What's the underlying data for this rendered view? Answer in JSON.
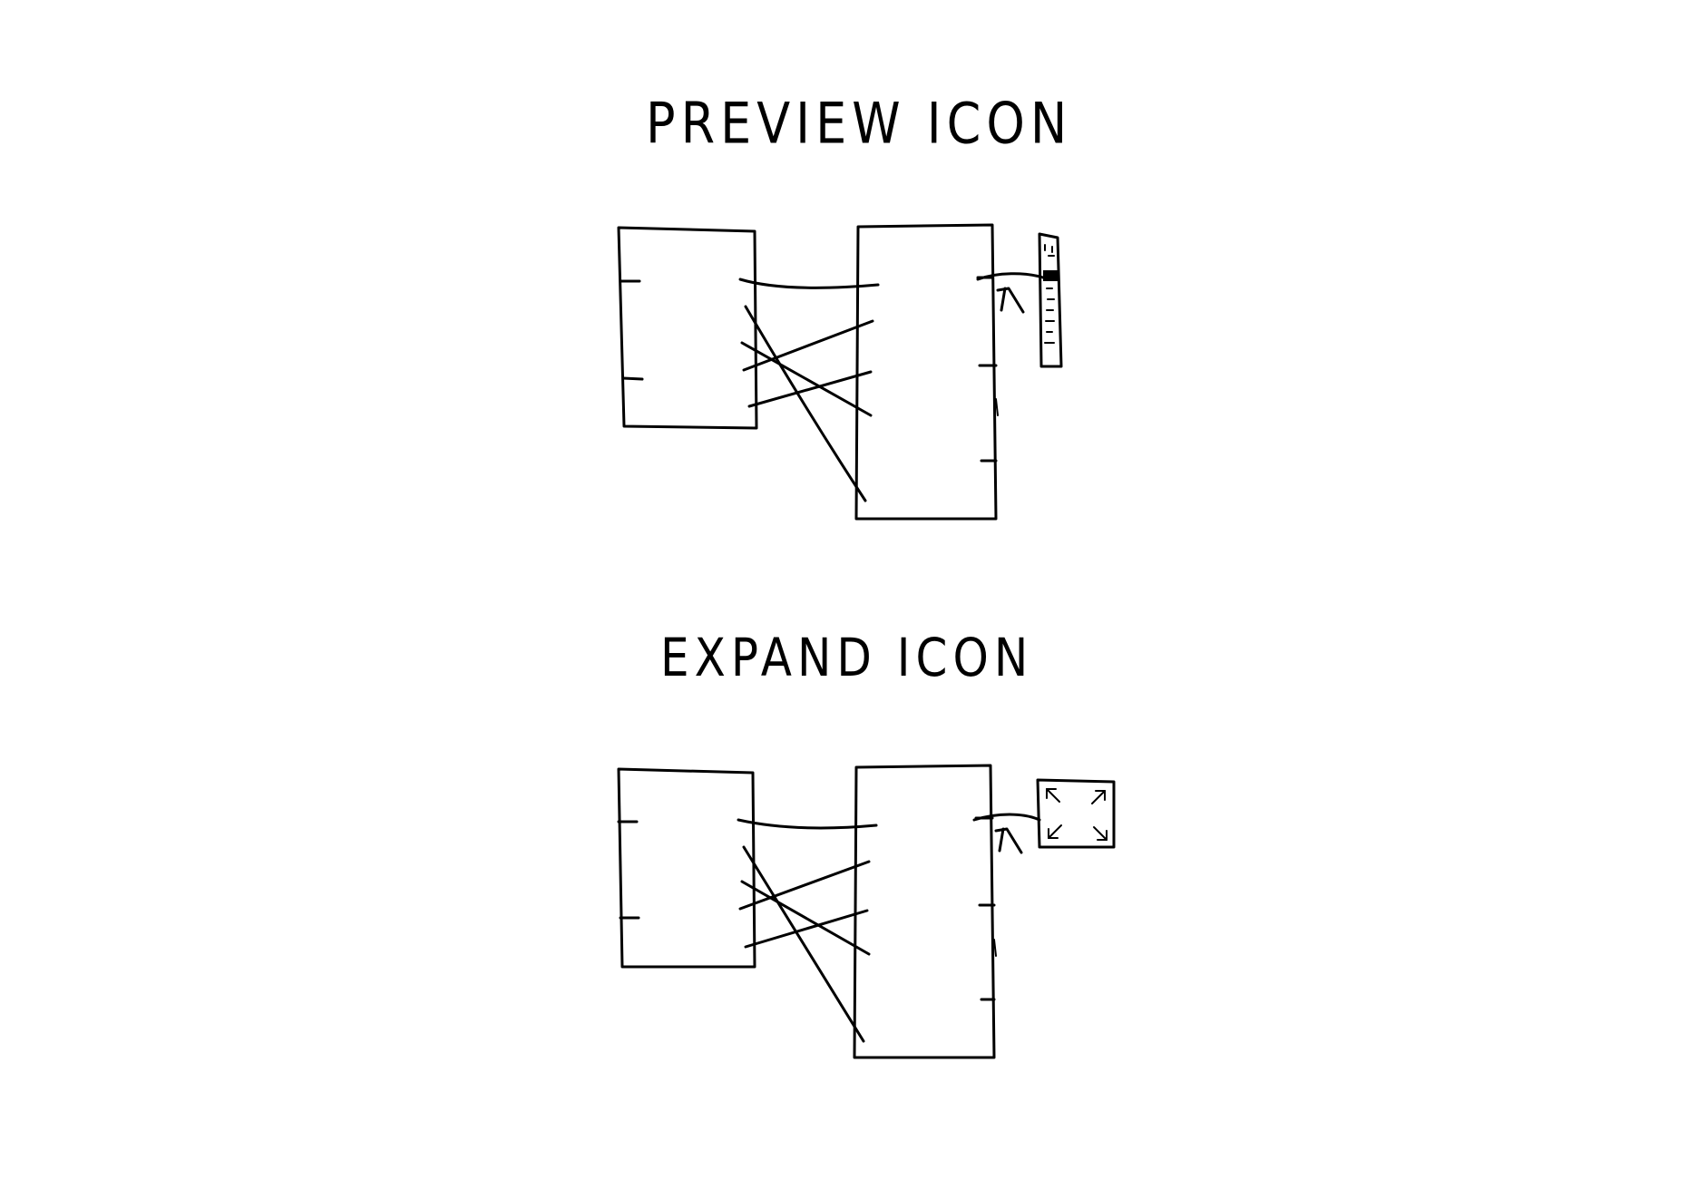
{
  "diagram": {
    "sections": [
      {
        "id": "preview",
        "title": "PREVIEW ICON",
        "icon": "minimap-preview-icon"
      },
      {
        "id": "expand",
        "title": "EXPAND ICON",
        "icon": "expand-arrows-icon"
      }
    ],
    "ink_color": "#000000",
    "background_color": "#ffffff"
  }
}
